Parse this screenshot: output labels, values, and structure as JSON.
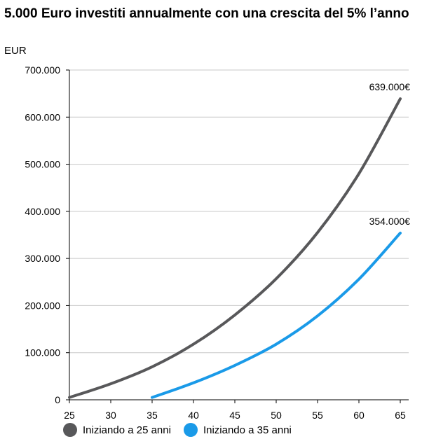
{
  "chart_data": {
    "type": "line",
    "title": "5.000 Euro investiti annualmente con una crescita del 5% l’anno",
    "ylabel": "EUR",
    "xlabel": "",
    "xlim": [
      25,
      65
    ],
    "ylim": [
      0,
      700000
    ],
    "x_ticks": [
      "25",
      "30",
      "35",
      "40",
      "45",
      "50",
      "55",
      "60",
      "65"
    ],
    "y_ticks": [
      "0",
      "100.000",
      "200.000",
      "300.000",
      "400.000",
      "500.000",
      "600.000",
      "700.000"
    ],
    "grid": "horizontal",
    "legend_position": "bottom-left",
    "series": [
      {
        "name": "Iniziando a 25 anni",
        "color": "#58585a",
        "end_label": "639.000€",
        "points": [
          [
            25,
            5000
          ],
          [
            30,
            34000
          ],
          [
            35,
            70000
          ],
          [
            40,
            118000
          ],
          [
            45,
            180000
          ],
          [
            50,
            257000
          ],
          [
            55,
            355000
          ],
          [
            60,
            480000
          ],
          [
            65,
            639000
          ]
        ]
      },
      {
        "name": "Iniziando a 35 anni",
        "color": "#1a9ae8",
        "end_label": "354.000€",
        "points": [
          [
            35,
            5000
          ],
          [
            40,
            36000
          ],
          [
            45,
            73000
          ],
          [
            50,
            118000
          ],
          [
            55,
            178000
          ],
          [
            60,
            256000
          ],
          [
            65,
            354000
          ]
        ]
      }
    ]
  }
}
